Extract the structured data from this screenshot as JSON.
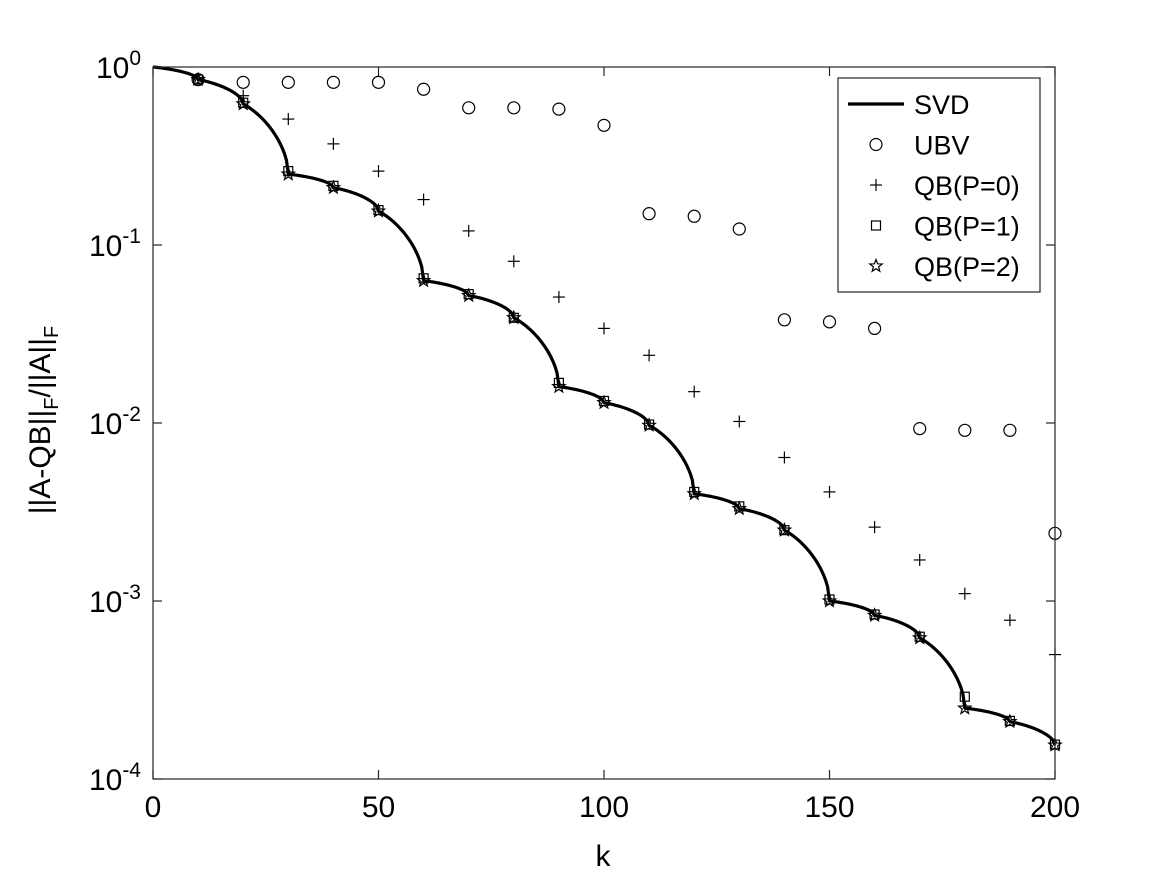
{
  "chart_data": {
    "type": "line",
    "xlabel": "k",
    "ylabel_parts": [
      "||A-QB||",
      "F",
      "/||A||",
      "F"
    ],
    "xlim": [
      0,
      200
    ],
    "ylim": [
      0.0001,
      1
    ],
    "yscale": "log",
    "grid": false,
    "legend_position": "top-right",
    "x_ticks": [
      0,
      50,
      100,
      150,
      200
    ],
    "x_tick_labels": [
      "0",
      "50",
      "100",
      "150",
      "200"
    ],
    "y_ticks": [
      1,
      0.1,
      0.01,
      0.001,
      0.0001
    ],
    "y_tick_bases": [
      "10",
      "10",
      "10",
      "10",
      "10"
    ],
    "y_tick_exponents": [
      "0",
      "-1",
      "-2",
      "-3",
      "-4"
    ],
    "svd_knots": [
      [
        0,
        1.0
      ],
      [
        10,
        0.85
      ],
      [
        20,
        0.62
      ],
      [
        30,
        0.25
      ],
      [
        40,
        0.21
      ],
      [
        50,
        0.155
      ],
      [
        60,
        0.063
      ],
      [
        70,
        0.052
      ],
      [
        80,
        0.039
      ],
      [
        90,
        0.016
      ],
      [
        100,
        0.013
      ],
      [
        110,
        0.0097
      ],
      [
        120,
        0.004
      ],
      [
        130,
        0.0033
      ],
      [
        140,
        0.0025
      ],
      [
        150,
        0.001
      ],
      [
        160,
        0.00083
      ],
      [
        170,
        0.00062
      ],
      [
        180,
        0.00025
      ],
      [
        190,
        0.00021
      ],
      [
        200,
        0.000155
      ]
    ],
    "series": [
      {
        "name": "SVD",
        "style": "line",
        "x": [
          0,
          10,
          20,
          30,
          40,
          50,
          60,
          70,
          80,
          90,
          100,
          110,
          120,
          130,
          140,
          150,
          160,
          170,
          180,
          190,
          200
        ],
        "values": [
          1.0,
          0.85,
          0.62,
          0.25,
          0.21,
          0.155,
          0.063,
          0.052,
          0.039,
          0.016,
          0.013,
          0.0097,
          0.004,
          0.0033,
          0.0025,
          0.001,
          0.00083,
          0.00062,
          0.00025,
          0.00021,
          0.000155
        ]
      },
      {
        "name": "UBV",
        "style": "circle",
        "x": [
          10,
          20,
          30,
          40,
          50,
          60,
          70,
          80,
          90,
          100,
          110,
          120,
          130,
          140,
          150,
          160,
          170,
          180,
          190,
          200
        ],
        "values": [
          0.85,
          0.82,
          0.82,
          0.82,
          0.82,
          0.75,
          0.59,
          0.59,
          0.58,
          0.47,
          0.15,
          0.145,
          0.123,
          0.038,
          0.037,
          0.034,
          0.0093,
          0.0091,
          0.0091,
          0.0024
        ]
      },
      {
        "name": "QB(P=0)",
        "style": "plus",
        "x": [
          10,
          20,
          30,
          40,
          50,
          60,
          70,
          80,
          90,
          100,
          110,
          120,
          130,
          140,
          150,
          160,
          170,
          180,
          190,
          200
        ],
        "values": [
          0.86,
          0.69,
          0.51,
          0.37,
          0.26,
          0.18,
          0.12,
          0.081,
          0.051,
          0.034,
          0.024,
          0.015,
          0.0102,
          0.0064,
          0.0041,
          0.0026,
          0.0017,
          0.0011,
          0.00078,
          0.0005
        ]
      },
      {
        "name": "QB(P=1)",
        "style": "square",
        "x": [
          10,
          20,
          30,
          40,
          50,
          60,
          70,
          80,
          90,
          100,
          110,
          120,
          130,
          140,
          150,
          160,
          170,
          180,
          190,
          200
        ],
        "values": [
          0.85,
          0.63,
          0.26,
          0.215,
          0.157,
          0.065,
          0.053,
          0.039,
          0.0168,
          0.0133,
          0.0098,
          0.0041,
          0.0034,
          0.0025,
          0.00102,
          0.00084,
          0.00063,
          0.00029,
          0.000212,
          0.000156
        ]
      },
      {
        "name": "QB(P=2)",
        "style": "star",
        "x": [
          10,
          20,
          30,
          40,
          50,
          60,
          70,
          80,
          90,
          100,
          110,
          120,
          130,
          140,
          150,
          160,
          170,
          180,
          190,
          200
        ],
        "values": [
          0.85,
          0.62,
          0.25,
          0.21,
          0.155,
          0.063,
          0.052,
          0.039,
          0.016,
          0.013,
          0.0097,
          0.004,
          0.0033,
          0.0025,
          0.001,
          0.00083,
          0.00062,
          0.00025,
          0.00021,
          0.000155
        ]
      }
    ]
  }
}
